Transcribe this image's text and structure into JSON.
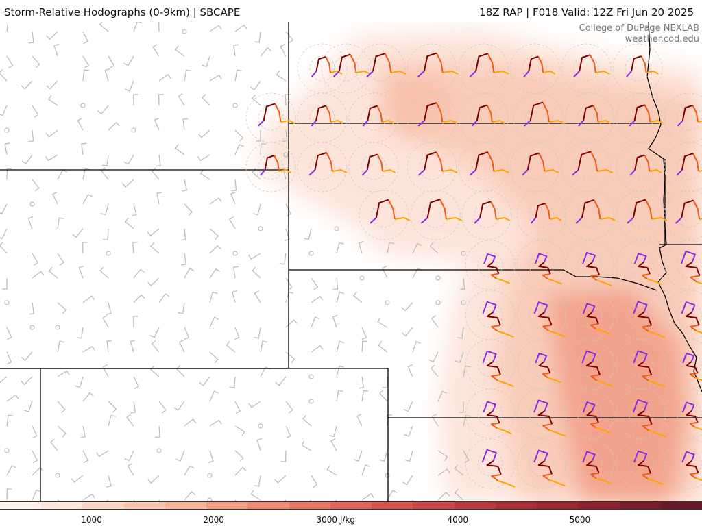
{
  "header": {
    "title_left": "Storm-Relative Hodographs (0-9km) | SBCAPE",
    "title_right": "18Z RAP | F018 Valid: 12Z Fri Jun 20 2025"
  },
  "credit": {
    "line1": "College of DuPage NEXLAB",
    "line2": "weather.cod.edu"
  },
  "colorbar": {
    "tick_labels": [
      {
        "value": 1000,
        "label": "1000"
      },
      {
        "value": 2000,
        "label": "2000"
      },
      {
        "value": 3000,
        "label": "3000 J/kg"
      },
      {
        "value": 4000,
        "label": "4000"
      },
      {
        "value": 5000,
        "label": "5000"
      }
    ],
    "range": [
      250,
      6000
    ],
    "colors": [
      "#fff2ea",
      "#fde6d9",
      "#fbd5c3",
      "#f9c5ae",
      "#f6b39a",
      "#f3a087",
      "#ef8c77",
      "#ea7868",
      "#e2645a",
      "#d8534f",
      "#cc4647",
      "#bd3a40",
      "#ad3039",
      "#9d2833",
      "#8b222e",
      "#7a1d2a",
      "#6a1a27"
    ]
  },
  "map": {
    "colors": {
      "cape_light": "#fde2d6",
      "cape_mid": "#f7b89f",
      "cape_high": "#ef8a70",
      "state_lines": "#000000",
      "barbs": "#bdbdbd",
      "hodo_0_3": "#7b0000",
      "hodo_3_6": "#f05a14",
      "hodo_6_9": "#ffa500",
      "hodo_low": "#8a2be2",
      "range_rings": "#c8c8c8"
    }
  }
}
